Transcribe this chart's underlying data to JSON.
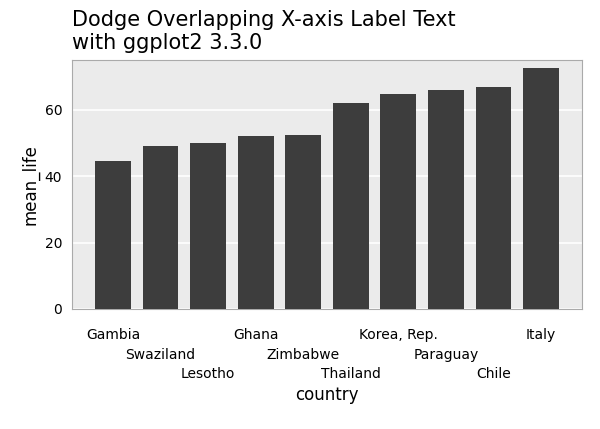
{
  "categories": [
    "Gambia",
    "Swaziland",
    "Lesotho",
    "Ghana",
    "Zimbabwe",
    "Thailand",
    "Korea, Rep.",
    "Paraguay",
    "Chile",
    "Italy"
  ],
  "values": [
    44.5,
    49.1,
    49.9,
    52.2,
    52.5,
    62.2,
    64.8,
    65.9,
    67.0,
    72.5
  ],
  "bar_color": "#3d3d3d",
  "title": "Dodge Overlapping X-axis Label Text\nwith ggplot2 3.3.0",
  "ylabel": "mean_life",
  "xlabel": "country",
  "ylim": [
    0,
    75
  ],
  "yticks": [
    0,
    20,
    40,
    60
  ],
  "plot_bg_color": "#EBEBEB",
  "fig_bg_color": "#FFFFFF",
  "grid_color": "#FFFFFF",
  "spine_color": "#AAAAAA",
  "title_fontsize": 15,
  "axis_label_fontsize": 12,
  "tick_label_fontsize": 10,
  "row_assignment": [
    0,
    1,
    2,
    0,
    1,
    2,
    0,
    1,
    2,
    0
  ],
  "row_offsets_pts": [
    -14,
    -28,
    -42
  ]
}
